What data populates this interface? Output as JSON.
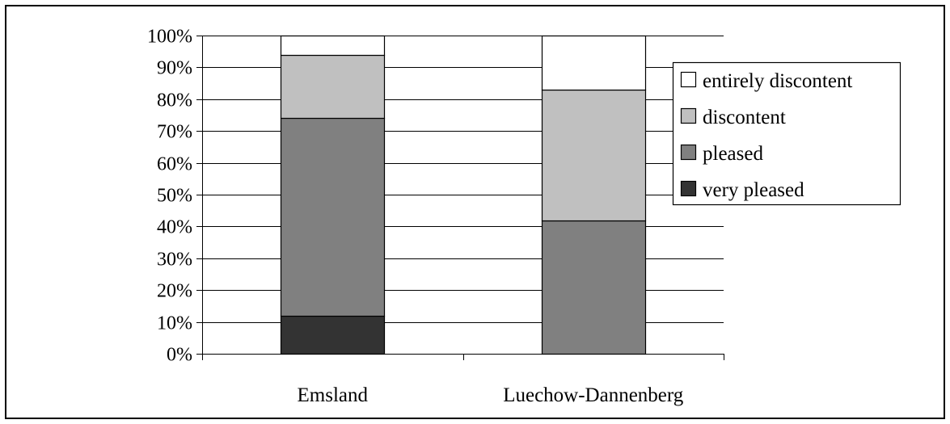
{
  "chart_data": {
    "type": "bar",
    "stacked": true,
    "percent": true,
    "categories": [
      "Emsland",
      "Luechow-Dannenberg"
    ],
    "series": [
      {
        "name": "very pleased",
        "color": "#333333",
        "values": [
          12,
          0
        ]
      },
      {
        "name": "pleased",
        "color": "#808080",
        "values": [
          62,
          42
        ]
      },
      {
        "name": "discontent",
        "color": "#c0c0c0",
        "values": [
          20,
          41
        ]
      },
      {
        "name": "entirely discontent",
        "color": "#ffffff",
        "values": [
          6,
          17
        ]
      }
    ],
    "yticks": [
      "0%",
      "10%",
      "20%",
      "30%",
      "40%",
      "50%",
      "60%",
      "70%",
      "80%",
      "90%",
      "100%"
    ],
    "ylim": [
      0,
      100
    ],
    "grid": true,
    "legend": {
      "placement": "right",
      "order": [
        "entirely discontent",
        "discontent",
        "pleased",
        "very pleased"
      ]
    }
  }
}
